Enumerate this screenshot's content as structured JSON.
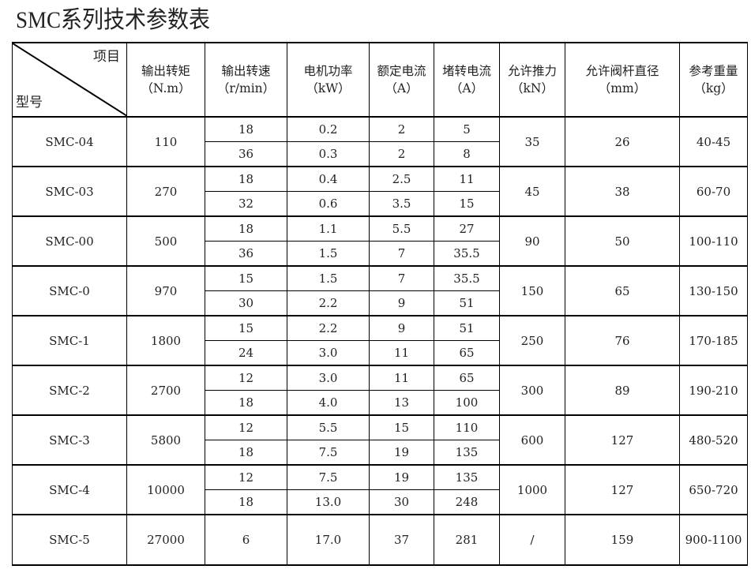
{
  "title": "SMC系列技术参数表",
  "header": {
    "corner_top": "项目",
    "corner_bottom": "型号",
    "columns": [
      {
        "name": "输出转矩",
        "unit": "（N.m）"
      },
      {
        "name": "输出转速",
        "unit": "（r/min）"
      },
      {
        "name": "电机功率",
        "unit": "（kW）"
      },
      {
        "name": "额定电流",
        "unit": "（A）"
      },
      {
        "name": "堵转电流",
        "unit": "（A）"
      },
      {
        "name": "允许推力",
        "unit": "（kN）"
      },
      {
        "name": "允许阀杆直径",
        "unit": "（mm）"
      },
      {
        "name": "参考重量",
        "unit": "（kg）"
      }
    ]
  },
  "rows": [
    {
      "model": "SMC-04",
      "torque": "110",
      "thrust": "35",
      "stem": "26",
      "weight": "40-45",
      "sub": [
        {
          "speed": "18",
          "power": "0.2",
          "rated": "2",
          "stall": "5"
        },
        {
          "speed": "36",
          "power": "0.3",
          "rated": "2",
          "stall": "8"
        }
      ]
    },
    {
      "model": "SMC-03",
      "torque": "270",
      "thrust": "45",
      "stem": "38",
      "weight": "60-70",
      "sub": [
        {
          "speed": "18",
          "power": "0.4",
          "rated": "2.5",
          "stall": "11"
        },
        {
          "speed": "32",
          "power": "0.6",
          "rated": "3.5",
          "stall": "15"
        }
      ]
    },
    {
      "model": "SMC-00",
      "torque": "500",
      "thrust": "90",
      "stem": "50",
      "weight": "100-110",
      "sub": [
        {
          "speed": "18",
          "power": "1.1",
          "rated": "5.5",
          "stall": "27"
        },
        {
          "speed": "36",
          "power": "1.5",
          "rated": "7",
          "stall": "35.5"
        }
      ]
    },
    {
      "model": "SMC-0",
      "torque": "970",
      "thrust": "150",
      "stem": "65",
      "weight": "130-150",
      "sub": [
        {
          "speed": "15",
          "power": "1.5",
          "rated": "7",
          "stall": "35.5"
        },
        {
          "speed": "30",
          "power": "2.2",
          "rated": "9",
          "stall": "51"
        }
      ]
    },
    {
      "model": "SMC-1",
      "torque": "1800",
      "thrust": "250",
      "stem": "76",
      "weight": "170-185",
      "sub": [
        {
          "speed": "15",
          "power": "2.2",
          "rated": "9",
          "stall": "51"
        },
        {
          "speed": "24",
          "power": "3.0",
          "rated": "11",
          "stall": "65"
        }
      ]
    },
    {
      "model": "SMC-2",
      "torque": "2700",
      "thrust": "300",
      "stem": "89",
      "weight": "190-210",
      "sub": [
        {
          "speed": "12",
          "power": "3.0",
          "rated": "11",
          "stall": "65"
        },
        {
          "speed": "18",
          "power": "4.0",
          "rated": "13",
          "stall": "100"
        }
      ]
    },
    {
      "model": "SMC-3",
      "torque": "5800",
      "thrust": "600",
      "stem": "127",
      "weight": "480-520",
      "sub": [
        {
          "speed": "12",
          "power": "5.5",
          "rated": "15",
          "stall": "110"
        },
        {
          "speed": "18",
          "power": "7.5",
          "rated": "19",
          "stall": "135"
        }
      ]
    },
    {
      "model": "SMC-4",
      "torque": "10000",
      "thrust": "1000",
      "stem": "127",
      "weight": "650-720",
      "sub": [
        {
          "speed": "12",
          "power": "7.5",
          "rated": "19",
          "stall": "135"
        },
        {
          "speed": "18",
          "power": "13.0",
          "rated": "30",
          "stall": "248"
        }
      ]
    },
    {
      "model": "SMC-5",
      "torque": "27000",
      "thrust": "/",
      "stem": "159",
      "weight": "900-1100",
      "sub": [
        {
          "speed": "6",
          "power": "17.0",
          "rated": "37",
          "stall": "281"
        }
      ]
    }
  ]
}
